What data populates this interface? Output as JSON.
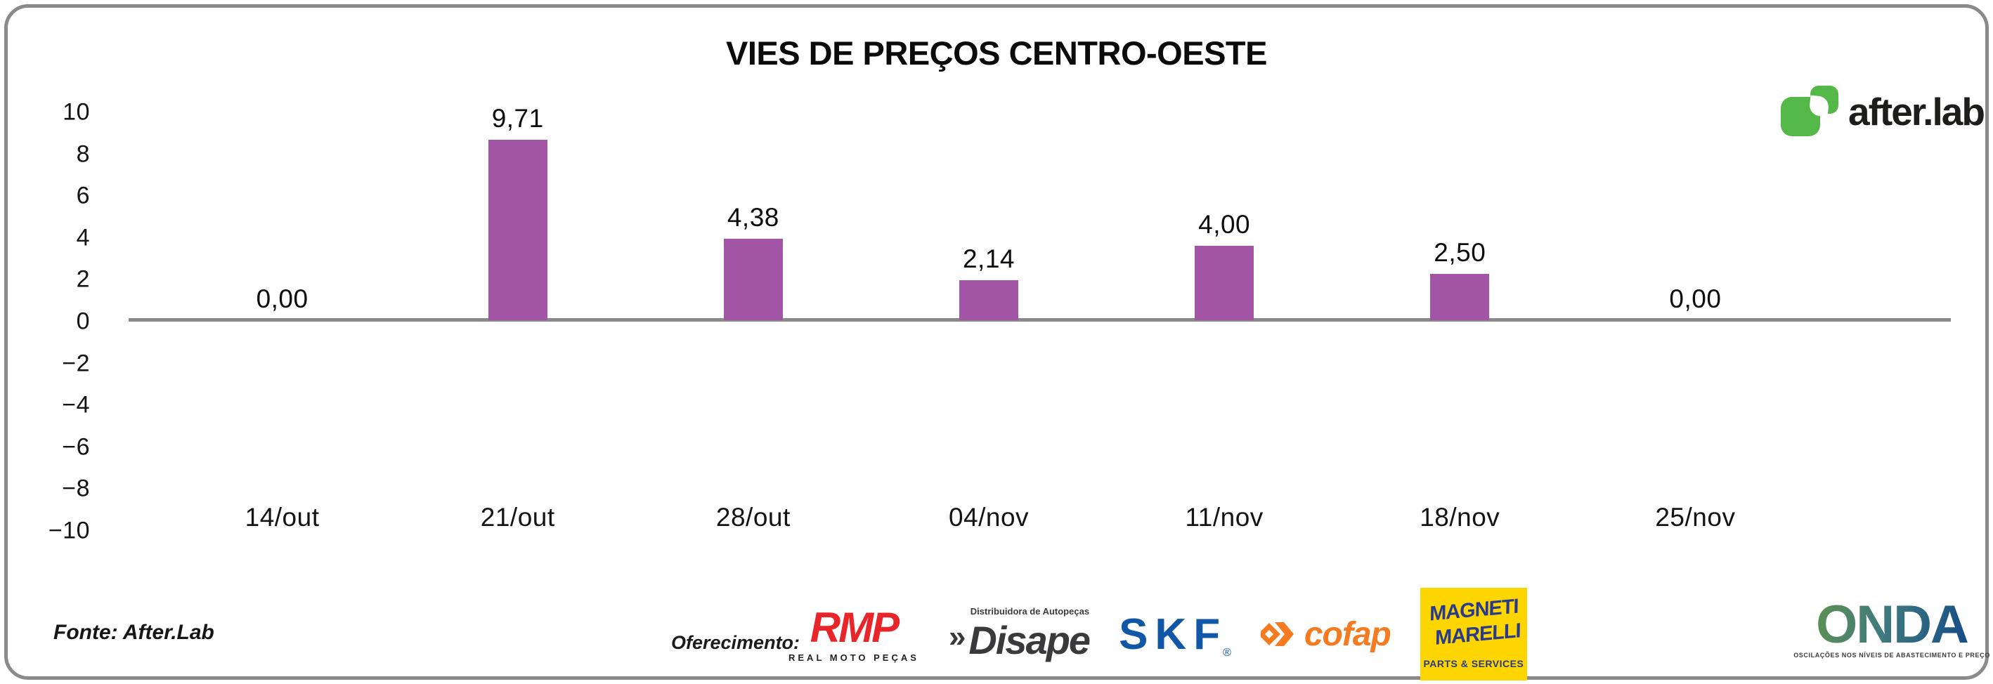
{
  "colors": {
    "text": "#111111",
    "frame_border": "#8A8A8A",
    "baseline": "#8A8A8A",
    "bar": "#A155A4",
    "afterlab_green": "#53B848",
    "afterlab_text": "#1D1D1B",
    "rmp_red": "#E8262A",
    "disape_dark": "#3A3A3C",
    "skf_blue": "#1058A7",
    "cofap_orange": "#F47B20",
    "marelli_yellow": "#FFD500",
    "marelli_blue": "#283A8F",
    "onda_green": "#5E9150",
    "onda_mid": "#3E7A7E",
    "onda_blue": "#164B86"
  },
  "chart_data": {
    "type": "bar",
    "title": "VIES DE PREÇOS CENTRO-OESTE",
    "categories": [
      "14/out",
      "21/out",
      "28/out",
      "04/nov",
      "11/nov",
      "18/nov",
      "25/nov"
    ],
    "values": [
      0,
      9.71,
      4.38,
      2.14,
      4.0,
      2.5,
      0
    ],
    "value_labels": [
      "0,00",
      "9,71",
      "4,38",
      "2,14",
      "4,00",
      "2,50",
      "0,00"
    ],
    "yticks": [
      10,
      8,
      6,
      4,
      2,
      0,
      -2,
      -4,
      -6,
      -8,
      -10
    ],
    "ytick_labels": [
      "10",
      "8",
      "6",
      "4",
      "2",
      "0",
      "−2",
      "−4",
      "−6",
      "−8",
      "−10"
    ],
    "ylim": [
      -10,
      10
    ],
    "xlabel": "",
    "ylabel": "",
    "grid": false,
    "legend": false,
    "bar_color": "#A155A4"
  },
  "branding": {
    "afterlab_wordmark": "after.lab"
  },
  "footer": {
    "fonte": "Fonte: After.Lab",
    "oferecimento_label": "Oferecimento:",
    "sponsors": {
      "rmp": {
        "name": "RMP",
        "subtitle": "REAL MOTO PEÇAS"
      },
      "disape": {
        "prefix": "»",
        "name": "Disape",
        "subtitle": "Distribuidora de Autopeças"
      },
      "skf": {
        "name": "SKF",
        "reg": "®"
      },
      "cofap": {
        "name": "cofap"
      },
      "marelli": {
        "line1": "MAGNETI",
        "line2": "MARELLI",
        "subtitle": "PARTS & SERVICES"
      },
      "onda": {
        "name": "ONDA",
        "subtitle": "OSCILAÇÕES NOS NÍVEIS DE ABASTECIMENTO E PREÇO"
      }
    }
  }
}
